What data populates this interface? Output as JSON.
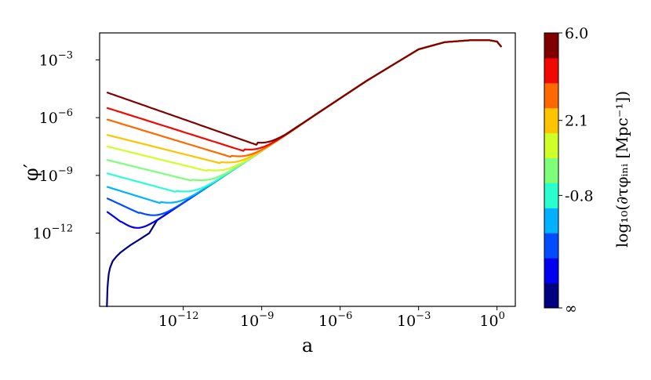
{
  "chart_data": {
    "type": "line",
    "title": "",
    "xlabel": "a",
    "ylabel": "φ′",
    "x_scale": "log",
    "y_scale": "log",
    "xlim_log10": [
      -15.2,
      0.7
    ],
    "ylim_log10": [
      -15.8,
      -1.6
    ],
    "x_ticks": [
      {
        "exp": -12,
        "label": "10",
        "sup": "−12"
      },
      {
        "exp": -9,
        "label": "10",
        "sup": "−9"
      },
      {
        "exp": -6,
        "label": "10",
        "sup": "−6"
      },
      {
        "exp": -3,
        "label": "10",
        "sup": "−3"
      },
      {
        "exp": 0,
        "label": "10",
        "sup": "0"
      }
    ],
    "y_ticks": [
      {
        "exp": -3,
        "label": "10",
        "sup": "−3"
      },
      {
        "exp": -6,
        "label": "10",
        "sup": "−6"
      },
      {
        "exp": -9,
        "label": "10",
        "sup": "−9"
      },
      {
        "exp": -12,
        "label": "10",
        "sup": "−12"
      }
    ],
    "series": [
      {
        "color": "#000080",
        "start_y_log10": null,
        "min_x_log10": -14.5,
        "min_y_log10": -15.5
      },
      {
        "color": "#0000f1",
        "start_y_log10": -10.9,
        "min_x_log10": -14.0,
        "min_y_log10": -11.8
      },
      {
        "color": "#004dff",
        "start_y_log10": -10.2,
        "min_x_log10": -13.3,
        "min_y_log10": -11.2
      },
      {
        "color": "#00b1ff",
        "start_y_log10": -9.6,
        "min_x_log10": -12.5,
        "min_y_log10": -10.6
      },
      {
        "color": "#29ffce",
        "start_y_log10": -8.9,
        "min_x_log10": -11.9,
        "min_y_log10": -10.0
      },
      {
        "color": "#7dff7a",
        "start_y_log10": -8.2,
        "min_x_log10": -11.3,
        "min_y_log10": -9.4
      },
      {
        "color": "#ceff29",
        "start_y_log10": -7.5,
        "min_x_log10": -10.7,
        "min_y_log10": -8.9
      },
      {
        "color": "#ffc400",
        "start_y_log10": -6.9,
        "min_x_log10": -10.2,
        "min_y_log10": -8.5
      },
      {
        "color": "#ff6800",
        "start_y_log10": -6.1,
        "min_x_log10": -9.8,
        "min_y_log10": -8.2
      },
      {
        "color": "#f10800",
        "start_y_log10": -5.5,
        "min_x_log10": -9.3,
        "min_y_log10": -7.9
      },
      {
        "color": "#800000",
        "start_y_log10": -4.7,
        "min_x_log10": -8.8,
        "min_y_log10": -7.6
      }
    ],
    "shared_late_curve": {
      "points_log10": [
        [
          -8.8,
          -7.55
        ],
        [
          -8.3,
          -7.1
        ],
        [
          -7,
          -5.9
        ],
        [
          -5,
          -4.1
        ],
        [
          -3,
          -2.45
        ],
        [
          -2,
          -2.08
        ],
        [
          -1,
          -1.98
        ],
        [
          -0.3,
          -1.98
        ],
        [
          0,
          -2.05
        ],
        [
          0.15,
          -2.3
        ]
      ]
    },
    "colorbar": {
      "label": "log₁₀(∂τφᵢₙᵢ [Mpc⁻¹])",
      "tick_labels": [
        "6.0",
        "2.1",
        "-0.8",
        "∞"
      ],
      "colors": [
        "#000080",
        "#0000f1",
        "#004dff",
        "#00b1ff",
        "#29ffce",
        "#7dff7a",
        "#ceff29",
        "#ffc400",
        "#ff6800",
        "#f10800",
        "#800000"
      ]
    }
  }
}
